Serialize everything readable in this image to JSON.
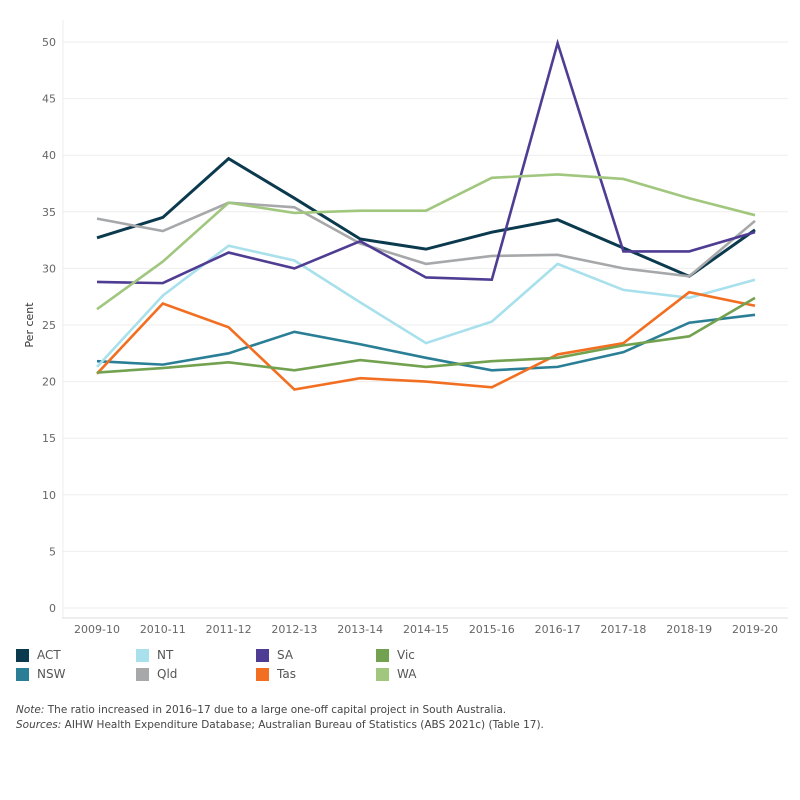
{
  "chart_data": {
    "type": "line",
    "title": "",
    "xlabel": "",
    "ylabel": "Per cent",
    "ylim": [
      0,
      50
    ],
    "yticks": [
      0,
      5,
      10,
      15,
      20,
      25,
      30,
      35,
      40,
      45,
      50
    ],
    "grid": true,
    "legend_position": "bottom",
    "categories": [
      "2009-10",
      "2010-11",
      "2011-12",
      "2012-13",
      "2013-14",
      "2014-15",
      "2015-16",
      "2016-17",
      "2017-18",
      "2018-19",
      "2019-20"
    ],
    "series": [
      {
        "name": "ACT",
        "color": "#0b3a4e",
        "values": [
          32.7,
          34.5,
          39.7,
          36.2,
          32.6,
          31.7,
          33.2,
          34.3,
          31.8,
          29.3,
          33.4
        ]
      },
      {
        "name": "NSW",
        "color": "#2a7f96",
        "values": [
          21.8,
          21.5,
          22.5,
          24.4,
          23.3,
          22.1,
          21.0,
          21.3,
          22.6,
          25.2,
          25.9
        ]
      },
      {
        "name": "NT",
        "color": "#a8e0ec",
        "values": [
          21.3,
          27.6,
          32.0,
          30.7,
          27.0,
          23.4,
          25.3,
          30.4,
          28.1,
          27.4,
          29.0
        ]
      },
      {
        "name": "Qld",
        "color": "#a6a8aa",
        "values": [
          34.4,
          33.3,
          35.8,
          35.4,
          32.2,
          30.4,
          31.1,
          31.2,
          30.0,
          29.3,
          34.2
        ]
      },
      {
        "name": "SA",
        "color": "#4f3c93",
        "values": [
          28.8,
          28.7,
          31.4,
          30.0,
          32.4,
          29.2,
          29.0,
          49.9,
          31.5,
          31.5,
          33.2
        ]
      },
      {
        "name": "Tas",
        "color": "#f26f22",
        "values": [
          20.7,
          26.9,
          24.8,
          19.3,
          20.3,
          20.0,
          19.5,
          22.4,
          23.4,
          27.9,
          26.7
        ]
      },
      {
        "name": "Vic",
        "color": "#72a24f",
        "values": [
          20.8,
          21.2,
          21.7,
          21.0,
          21.9,
          21.3,
          21.8,
          22.1,
          23.2,
          24.0,
          27.4
        ]
      },
      {
        "name": "WA",
        "color": "#a1c77f",
        "values": [
          26.4,
          30.6,
          35.8,
          34.9,
          35.1,
          35.1,
          38.0,
          38.3,
          37.9,
          36.2,
          34.7
        ]
      }
    ],
    "legend_order": [
      "ACT",
      "NT",
      "SA",
      "Vic",
      "NSW",
      "Qld",
      "Tas",
      "WA"
    ]
  },
  "notes": {
    "note_label": "Note:",
    "note_text": " The ratio increased in 2016–17 due to a large one-off capital project in South Australia.",
    "sources_label": "Sources:",
    "sources_text": " AIHW Health Expenditure Database; Australian Bureau of Statistics (ABS 2021c) (Table 17)."
  }
}
